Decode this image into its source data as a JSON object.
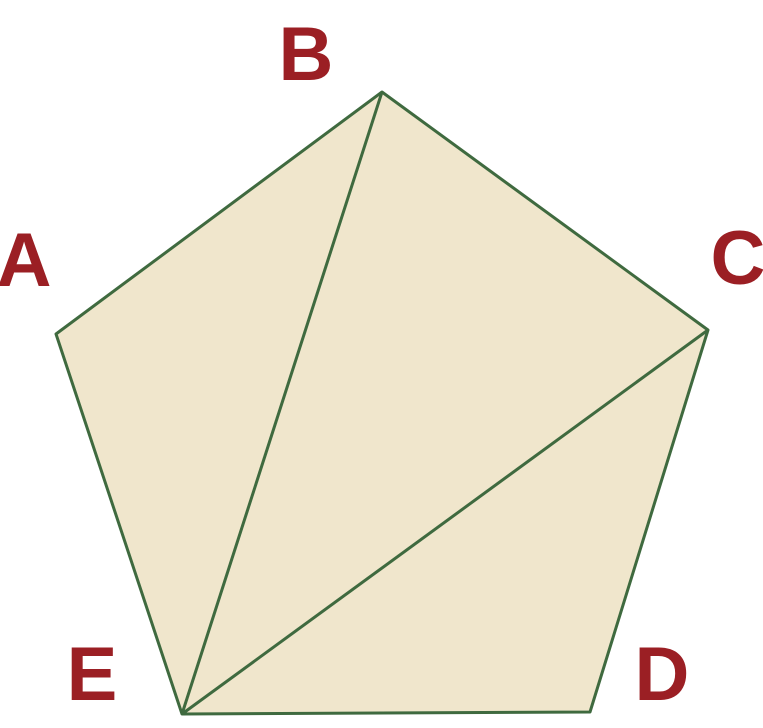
{
  "diagram": {
    "vertices": {
      "A": "A",
      "B": "B",
      "C": "C",
      "D": "D",
      "E": "E"
    },
    "colors": {
      "fill": "#f0e6cc",
      "stroke": "#3f6a3f",
      "label": "#9b1f24"
    }
  }
}
